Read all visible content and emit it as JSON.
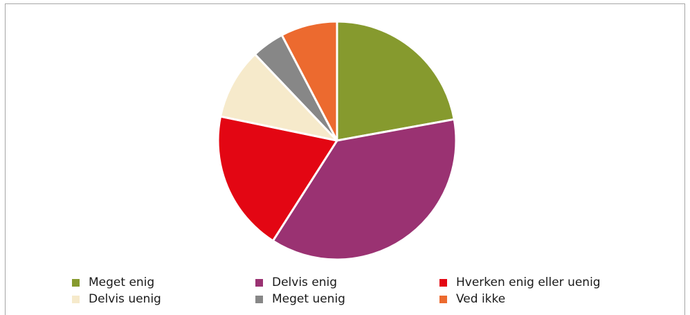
{
  "chart_data": {
    "type": "pie",
    "title": "",
    "legend_position": "bottom",
    "slices": [
      {
        "label": "Meget enig",
        "value": 22.5,
        "color": "#869A2E"
      },
      {
        "label": "Delvis enig",
        "value": 37.5,
        "color": "#9A3272"
      },
      {
        "label": "Hverken enig eller uenig",
        "value": 19.5,
        "color": "#E30613"
      },
      {
        "label": "Delvis uenig",
        "value": 9.8,
        "color": "#F6EACB"
      },
      {
        "label": "Meget uenig",
        "value": 4.5,
        "color": "#878787"
      },
      {
        "label": "Ved ikke",
        "value": 7.8,
        "color": "#EC6A2F"
      }
    ]
  }
}
